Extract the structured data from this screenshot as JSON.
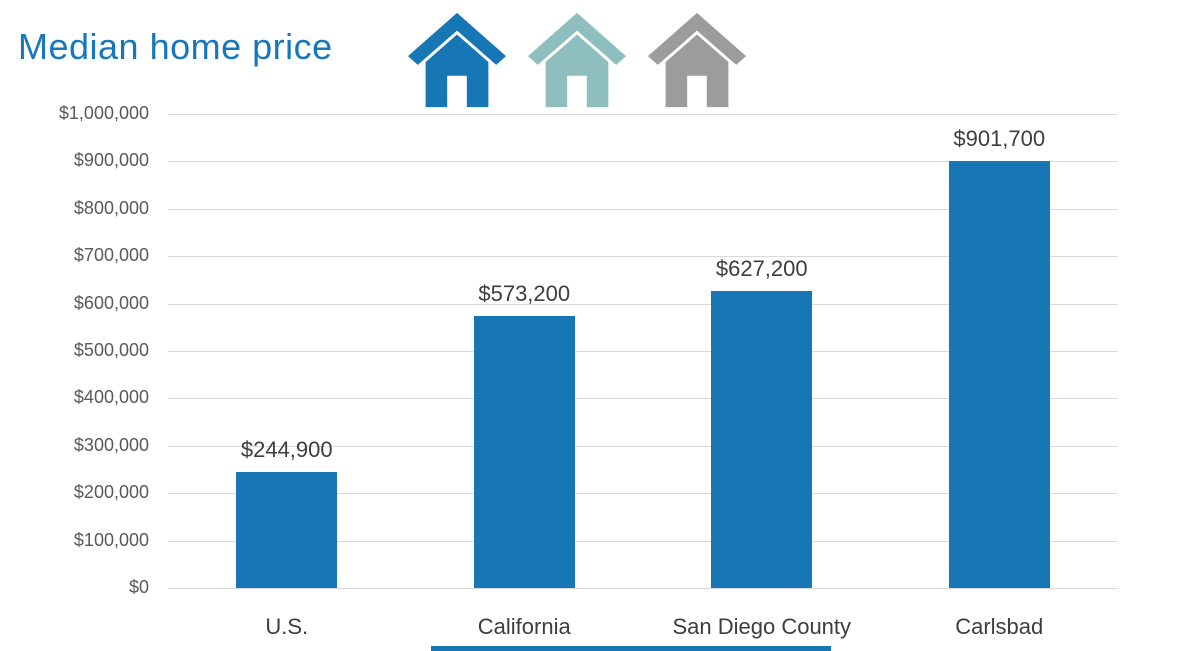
{
  "page": {
    "title": "Median home price"
  },
  "accent": {
    "bottom_bar_color": "#1777b4"
  },
  "icons": [
    {
      "name": "house-icon-blue",
      "color": "#1777b4"
    },
    {
      "name": "house-icon-teal",
      "color": "#8fbebe"
    },
    {
      "name": "house-icon-gray",
      "color": "#9c9c9c"
    }
  ],
  "chart_data": {
    "type": "bar",
    "title": "Median home price",
    "categories": [
      "U.S.",
      "California",
      "San Diego County",
      "Carlsbad"
    ],
    "values": [
      244900,
      573200,
      627200,
      901700
    ],
    "value_labels": [
      "$244,900",
      "$573,200",
      "$627,200",
      "$901,700"
    ],
    "xlabel": "",
    "ylabel": "",
    "ylim": [
      0,
      1000000
    ],
    "ytick_interval": 100000,
    "ytick_labels": [
      "$0",
      "$100,000",
      "$200,000",
      "$300,000",
      "$400,000",
      "$500,000",
      "$600,000",
      "$700,000",
      "$800,000",
      "$900,000",
      "$1,000,000"
    ],
    "bar_color": "#1777b4",
    "grid": true,
    "legend_position": "none"
  }
}
